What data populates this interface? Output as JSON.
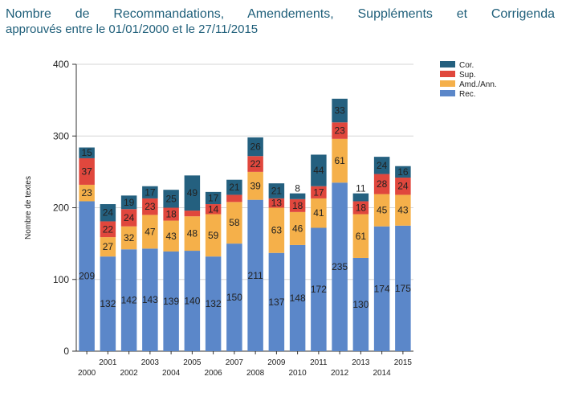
{
  "title": {
    "line1": "Nombre de Recommandations, Amendements, Suppléments et Corrigenda",
    "line2": "approuvés entre le 01/01/2000 et le 27/11/2015"
  },
  "chart_data": {
    "type": "bar",
    "stacked": true,
    "title": "Nombre de Recommandations, Amendements, Suppléments et Corrigenda approuvés entre le 01/01/2000 et le 27/11/2015",
    "xlabel": "",
    "ylabel": "Nombre de textes",
    "ylim": [
      0,
      400
    ],
    "yticks": [
      0,
      100,
      200,
      300,
      400
    ],
    "grid": true,
    "legend_position": "top-right",
    "categories": [
      "2000",
      "2001",
      "2002",
      "2003",
      "2004",
      "2005",
      "2006",
      "2007",
      "2008",
      "2009",
      "2010",
      "2011",
      "2012",
      "2013",
      "2014",
      "2015"
    ],
    "series": [
      {
        "name": "Rec.",
        "color": "#5b87c9",
        "values": [
          209,
          132,
          142,
          143,
          139,
          140,
          132,
          150,
          211,
          137,
          148,
          172,
          235,
          130,
          174,
          175
        ]
      },
      {
        "name": "Amd./Ann.",
        "color": "#f5b04a",
        "values": [
          23,
          27,
          32,
          47,
          43,
          48,
          59,
          58,
          39,
          63,
          46,
          41,
          61,
          61,
          45,
          43
        ]
      },
      {
        "name": "Sup.",
        "color": "#e0473d",
        "values": [
          37,
          22,
          24,
          23,
          18,
          8,
          14,
          10,
          22,
          13,
          18,
          17,
          23,
          18,
          28,
          24
        ]
      },
      {
        "name": "Cor.",
        "color": "#24607f",
        "values": [
          15,
          24,
          19,
          17,
          25,
          49,
          17,
          21,
          26,
          21,
          8,
          44,
          33,
          11,
          24,
          16
        ]
      }
    ]
  }
}
